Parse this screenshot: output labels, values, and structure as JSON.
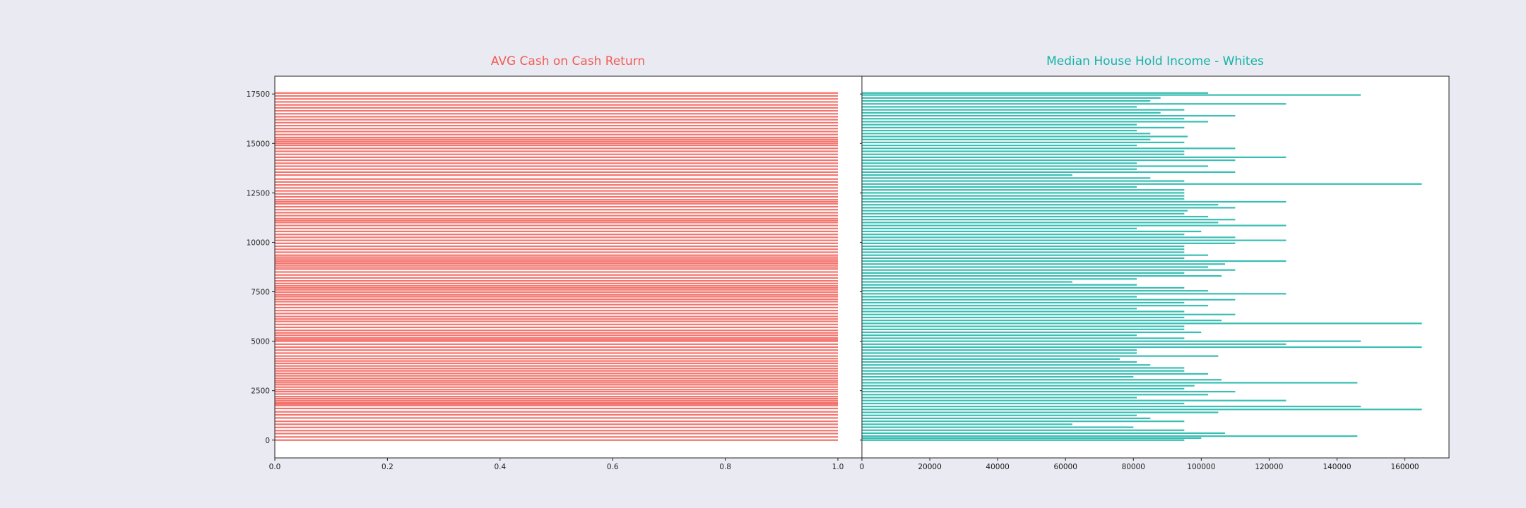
{
  "chart_data": [
    {
      "type": "bar",
      "orientation": "horizontal",
      "title": "AVG Cash on Cash Return",
      "title_color": "#f25c54",
      "bar_color": "#f25c54",
      "ylim": [
        -900,
        18400
      ],
      "xlim": [
        0,
        1.0
      ],
      "yticks": [
        0,
        2500,
        5000,
        7500,
        10000,
        12500,
        15000,
        17500
      ],
      "xticks": [
        0.0,
        0.2,
        0.4,
        0.6,
        0.8,
        1.0
      ],
      "ytick_labels": [
        "0",
        "2500",
        "5000",
        "7500",
        "10000",
        "12500",
        "15000",
        "17500"
      ],
      "xtick_labels": [
        "0.0",
        "0.2",
        "0.4",
        "0.6",
        "0.8",
        "1.0"
      ],
      "series": [
        {
          "values_note": "",
          "points": [
            [
              0,
              1.0
            ],
            [
              160,
              1.0
            ],
            [
              330,
              1.0
            ],
            [
              480,
              1.0
            ],
            [
              640,
              1.0
            ],
            [
              800,
              1.0
            ],
            [
              950,
              1.0
            ],
            [
              1120,
              1.0
            ],
            [
              1280,
              1.0
            ],
            [
              1430,
              1.0
            ],
            [
              1600,
              1.0
            ],
            [
              1750,
              1.0
            ],
            [
              1830,
              1.0
            ],
            [
              1900,
              1.0
            ],
            [
              2000,
              1.0
            ],
            [
              2100,
              1.0
            ],
            [
              2200,
              1.0
            ],
            [
              2330,
              1.0
            ],
            [
              2450,
              1.0
            ],
            [
              2550,
              1.0
            ],
            [
              2680,
              1.0
            ],
            [
              2800,
              1.0
            ],
            [
              2900,
              1.0
            ],
            [
              3000,
              1.0
            ],
            [
              3120,
              1.0
            ],
            [
              3250,
              1.0
            ],
            [
              3370,
              1.0
            ],
            [
              3500,
              1.0
            ],
            [
              3620,
              1.0
            ],
            [
              3750,
              1.0
            ],
            [
              3880,
              1.0
            ],
            [
              4000,
              1.0
            ],
            [
              4120,
              1.0
            ],
            [
              4250,
              1.0
            ],
            [
              4400,
              1.0
            ],
            [
              4550,
              1.0
            ],
            [
              4700,
              1.0
            ],
            [
              4850,
              1.0
            ],
            [
              5000,
              1.0
            ],
            [
              5080,
              1.0
            ],
            [
              5170,
              1.0
            ],
            [
              5300,
              1.0
            ],
            [
              5420,
              1.0
            ],
            [
              5550,
              1.0
            ],
            [
              5700,
              1.0
            ],
            [
              5850,
              1.0
            ],
            [
              6000,
              1.0
            ],
            [
              6120,
              1.0
            ],
            [
              6250,
              1.0
            ],
            [
              6400,
              1.0
            ],
            [
              6550,
              1.0
            ],
            [
              6700,
              1.0
            ],
            [
              6850,
              1.0
            ],
            [
              7000,
              1.0
            ],
            [
              7120,
              1.0
            ],
            [
              7250,
              1.0
            ],
            [
              7350,
              1.0
            ],
            [
              7480,
              1.0
            ],
            [
              7600,
              1.0
            ],
            [
              7700,
              1.0
            ],
            [
              7800,
              1.0
            ],
            [
              7920,
              1.0
            ],
            [
              8050,
              1.0
            ],
            [
              8200,
              1.0
            ],
            [
              8350,
              1.0
            ],
            [
              8500,
              1.0
            ],
            [
              8650,
              1.0
            ],
            [
              8750,
              1.0
            ],
            [
              8850,
              1.0
            ],
            [
              8950,
              1.0
            ],
            [
              9050,
              1.0
            ],
            [
              9150,
              1.0
            ],
            [
              9250,
              1.0
            ],
            [
              9350,
              1.0
            ],
            [
              9500,
              1.0
            ],
            [
              9650,
              1.0
            ],
            [
              9800,
              1.0
            ],
            [
              9950,
              1.0
            ],
            [
              10100,
              1.0
            ],
            [
              10250,
              1.0
            ],
            [
              10400,
              1.0
            ],
            [
              10550,
              1.0
            ],
            [
              10700,
              1.0
            ],
            [
              10850,
              1.0
            ],
            [
              11000,
              1.0
            ],
            [
              11100,
              1.0
            ],
            [
              11200,
              1.0
            ],
            [
              11350,
              1.0
            ],
            [
              11500,
              1.0
            ],
            [
              11650,
              1.0
            ],
            [
              11800,
              1.0
            ],
            [
              11950,
              1.0
            ],
            [
              12050,
              1.0
            ],
            [
              12150,
              1.0
            ],
            [
              12300,
              1.0
            ],
            [
              12450,
              1.0
            ],
            [
              12600,
              1.0
            ],
            [
              12750,
              1.0
            ],
            [
              12900,
              1.0
            ],
            [
              13050,
              1.0
            ],
            [
              13200,
              1.0
            ],
            [
              13400,
              1.0
            ],
            [
              13550,
              1.0
            ],
            [
              13700,
              1.0
            ],
            [
              13850,
              1.0
            ],
            [
              14000,
              1.0
            ],
            [
              14150,
              1.0
            ],
            [
              14300,
              1.0
            ],
            [
              14450,
              1.0
            ],
            [
              14600,
              1.0
            ],
            [
              14750,
              1.0
            ],
            [
              14900,
              1.0
            ],
            [
              15000,
              1.0
            ],
            [
              15100,
              1.0
            ],
            [
              15200,
              1.0
            ],
            [
              15300,
              1.0
            ],
            [
              15450,
              1.0
            ],
            [
              15600,
              1.0
            ],
            [
              15750,
              1.0
            ],
            [
              15900,
              1.0
            ],
            [
              16050,
              1.0
            ],
            [
              16200,
              1.0
            ],
            [
              16350,
              1.0
            ],
            [
              16500,
              1.0
            ],
            [
              16650,
              1.0
            ],
            [
              16800,
              1.0
            ],
            [
              16950,
              1.0
            ],
            [
              17100,
              1.0
            ],
            [
              17250,
              1.0
            ],
            [
              17400,
              1.0
            ],
            [
              17550,
              1.0
            ]
          ]
        }
      ]
    },
    {
      "type": "bar",
      "orientation": "horizontal",
      "title": "Median House Hold Income - Whites",
      "title_color": "#16b3a6",
      "bar_color": "#16b3a6",
      "ylim": [
        -900,
        18400
      ],
      "xlim": [
        0,
        173000
      ],
      "yticks": [
        0,
        2500,
        5000,
        7500,
        10000,
        12500,
        15000,
        17500
      ],
      "xticks": [
        0,
        20000,
        40000,
        60000,
        80000,
        100000,
        120000,
        140000,
        160000
      ],
      "xtick_labels": [
        "0",
        "20000",
        "40000",
        "60000",
        "80000",
        "100000",
        "120000",
        "140000",
        "160000"
      ],
      "series": [
        {
          "values_note": "",
          "points": [
            [
              0,
              95000
            ],
            [
              100,
              100000
            ],
            [
              200,
              146000
            ],
            [
              350,
              107000
            ],
            [
              500,
              95000
            ],
            [
              650,
              80000
            ],
            [
              800,
              62000
            ],
            [
              950,
              95000
            ],
            [
              1100,
              85000
            ],
            [
              1250,
              81000
            ],
            [
              1400,
              105000
            ],
            [
              1550,
              165000
            ],
            [
              1700,
              147000
            ],
            [
              1850,
              95000
            ],
            [
              2000,
              125000
            ],
            [
              2150,
              81000
            ],
            [
              2300,
              102000
            ],
            [
              2450,
              110000
            ],
            [
              2600,
              95000
            ],
            [
              2750,
              98000
            ],
            [
              2900,
              146000
            ],
            [
              3050,
              106000
            ],
            [
              3200,
              80000
            ],
            [
              3350,
              102000
            ],
            [
              3500,
              95000
            ],
            [
              3650,
              95000
            ],
            [
              3800,
              85000
            ],
            [
              3950,
              81000
            ],
            [
              4100,
              76000
            ],
            [
              4250,
              105000
            ],
            [
              4400,
              81000
            ],
            [
              4550,
              81000
            ],
            [
              4700,
              165000
            ],
            [
              4850,
              125000
            ],
            [
              5000,
              147000
            ],
            [
              5150,
              95000
            ],
            [
              5300,
              81000
            ],
            [
              5450,
              100000
            ],
            [
              5600,
              95000
            ],
            [
              5750,
              95000
            ],
            [
              5900,
              165000
            ],
            [
              6050,
              106000
            ],
            [
              6200,
              95000
            ],
            [
              6350,
              110000
            ],
            [
              6500,
              95000
            ],
            [
              6650,
              81000
            ],
            [
              6800,
              102000
            ],
            [
              6950,
              95000
            ],
            [
              7100,
              110000
            ],
            [
              7250,
              81000
            ],
            [
              7400,
              125000
            ],
            [
              7550,
              102000
            ],
            [
              7700,
              95000
            ],
            [
              7850,
              81000
            ],
            [
              8000,
              62000
            ],
            [
              8150,
              81000
            ],
            [
              8300,
              106000
            ],
            [
              8450,
              95000
            ],
            [
              8600,
              110000
            ],
            [
              8750,
              102000
            ],
            [
              8900,
              107000
            ],
            [
              9050,
              125000
            ],
            [
              9200,
              95000
            ],
            [
              9350,
              102000
            ],
            [
              9500,
              95000
            ],
            [
              9650,
              95000
            ],
            [
              9800,
              95000
            ],
            [
              9950,
              110000
            ],
            [
              10100,
              125000
            ],
            [
              10250,
              110000
            ],
            [
              10400,
              95000
            ],
            [
              10550,
              100000
            ],
            [
              10700,
              81000
            ],
            [
              10850,
              125000
            ],
            [
              11000,
              105000
            ],
            [
              11150,
              110000
            ],
            [
              11300,
              102000
            ],
            [
              11450,
              95000
            ],
            [
              11600,
              96000
            ],
            [
              11750,
              110000
            ],
            [
              11900,
              105000
            ],
            [
              12050,
              125000
            ],
            [
              12200,
              95000
            ],
            [
              12350,
              95000
            ],
            [
              12500,
              95000
            ],
            [
              12650,
              95000
            ],
            [
              12800,
              81000
            ],
            [
              12950,
              165000
            ],
            [
              13100,
              95000
            ],
            [
              13250,
              85000
            ],
            [
              13400,
              62000
            ],
            [
              13550,
              110000
            ],
            [
              13700,
              81000
            ],
            [
              13850,
              102000
            ],
            [
              14000,
              81000
            ],
            [
              14150,
              110000
            ],
            [
              14300,
              125000
            ],
            [
              14450,
              95000
            ],
            [
              14600,
              95000
            ],
            [
              14750,
              110000
            ],
            [
              14900,
              81000
            ],
            [
              15050,
              95000
            ],
            [
              15200,
              85000
            ],
            [
              15350,
              96000
            ],
            [
              15500,
              85000
            ],
            [
              15650,
              81000
            ],
            [
              15800,
              95000
            ],
            [
              15950,
              81000
            ],
            [
              16100,
              102000
            ],
            [
              16250,
              95000
            ],
            [
              16400,
              110000
            ],
            [
              16550,
              88000
            ],
            [
              16700,
              95000
            ],
            [
              16850,
              81000
            ],
            [
              17000,
              125000
            ],
            [
              17150,
              85000
            ],
            [
              17300,
              88000
            ],
            [
              17450,
              147000
            ],
            [
              17550,
              102000
            ]
          ]
        }
      ]
    }
  ]
}
